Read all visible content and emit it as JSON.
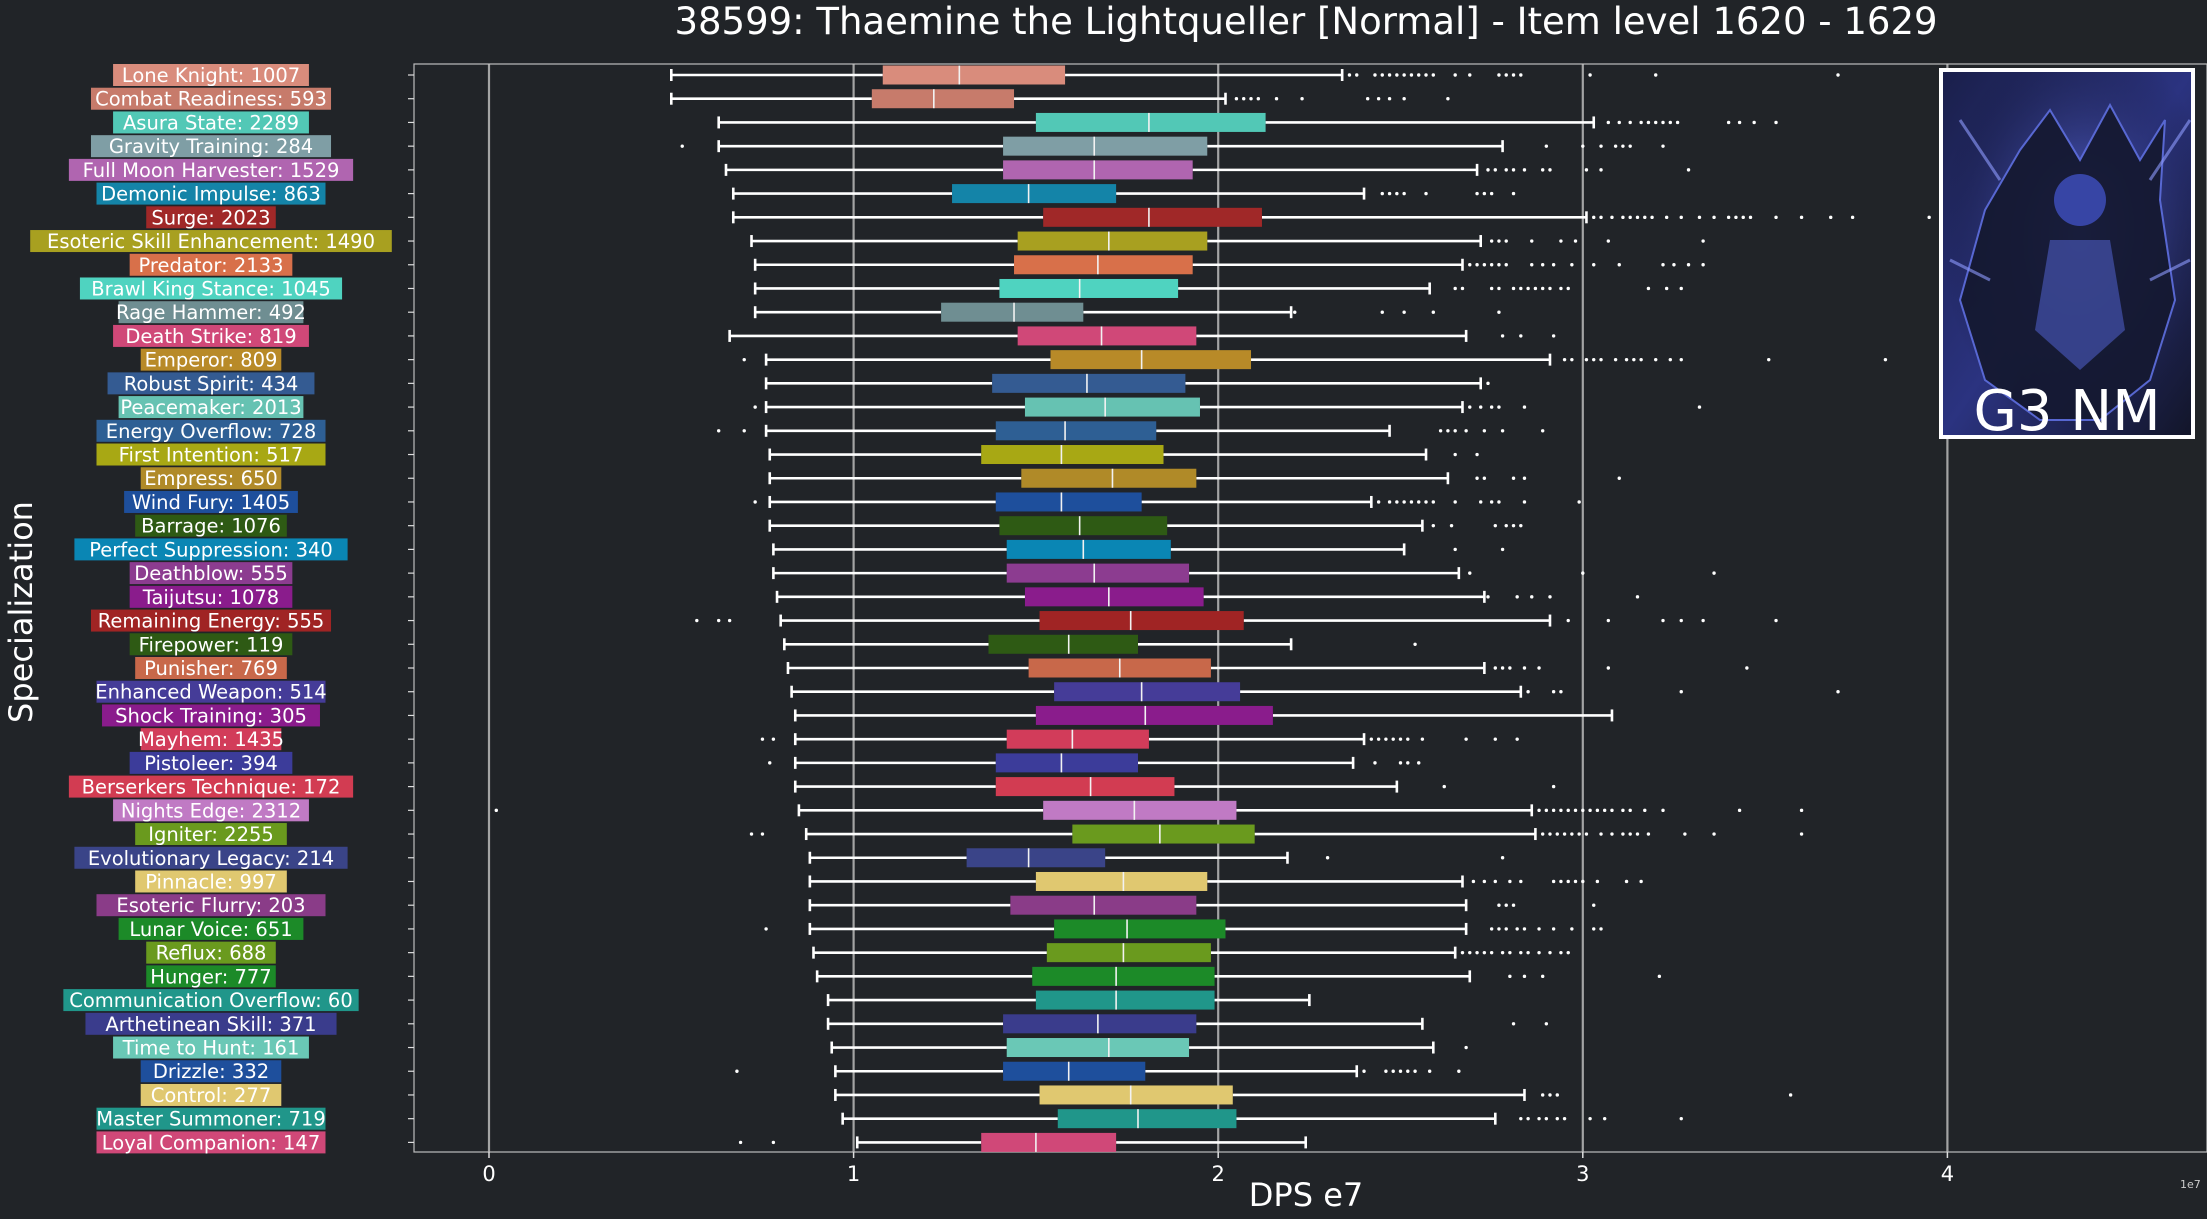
{
  "chart_data": {
    "type": "box",
    "title": "38599: Thaemine the Lightqueller [Normal] - Item level 1620 - 1629",
    "xlabel": "DPS e7",
    "ylabel": "Specialization",
    "x_scale_note": "1e7",
    "xlim": [
      -0.21,
      4.7
    ],
    "xticks": [
      0,
      1,
      2,
      3,
      4
    ],
    "grid": "vertical",
    "badge_text": "G3 NM",
    "categories": [
      {
        "label": "Lone Knight: 1007",
        "color": "#d98c7c",
        "whislo": 0.5,
        "q1": 1.08,
        "med": 1.29,
        "q3": 1.58,
        "whishi": 2.34,
        "fliers": [
          2.36,
          2.38,
          2.43,
          2.45,
          2.47,
          2.49,
          2.51,
          2.53,
          2.55,
          2.57,
          2.59,
          2.65,
          2.69,
          2.77,
          2.79,
          2.81,
          2.83,
          3.02,
          3.2,
          3.7
        ]
      },
      {
        "label": "Combat Readiness: 593",
        "color": "#c77b6b",
        "whislo": 0.5,
        "q1": 1.05,
        "med": 1.22,
        "q3": 1.44,
        "whishi": 2.02,
        "fliers": [
          2.05,
          2.07,
          2.09,
          2.11,
          2.16,
          2.23,
          2.41,
          2.44,
          2.47,
          2.51,
          2.63
        ]
      },
      {
        "label": "Asura State: 2289",
        "color": "#52c8b6",
        "whislo": 0.63,
        "q1": 1.5,
        "med": 1.81,
        "q3": 2.13,
        "whishi": 3.03,
        "fliers": [
          3.07,
          3.1,
          3.13,
          3.16,
          3.18,
          3.2,
          3.22,
          3.24,
          3.26,
          3.4,
          3.43,
          3.47,
          3.53
        ]
      },
      {
        "label": "Gravity Training: 284",
        "color": "#7f9ea5",
        "whislo": 0.63,
        "q1": 1.41,
        "med": 1.66,
        "q3": 1.97,
        "whishi": 2.78,
        "fliers": [
          0.53,
          2.9,
          3.0,
          3.05,
          3.09,
          3.11,
          3.13,
          3.22
        ]
      },
      {
        "label": "Full Moon Harvester: 1529",
        "color": "#b065b0",
        "whislo": 0.65,
        "q1": 1.41,
        "med": 1.66,
        "q3": 1.93,
        "whishi": 2.71,
        "fliers": [
          2.74,
          2.76,
          2.79,
          2.81,
          2.84,
          2.89,
          2.91,
          3.01,
          3.05,
          3.29
        ]
      },
      {
        "label": "Demonic Impulse: 863",
        "color": "#1484a8",
        "whislo": 0.67,
        "q1": 1.27,
        "med": 1.48,
        "q3": 1.72,
        "whishi": 2.4,
        "fliers": [
          2.45,
          2.47,
          2.49,
          2.51,
          2.57,
          2.71,
          2.73,
          2.75,
          2.81
        ]
      },
      {
        "label": "Surge: 2023",
        "color": "#a02828",
        "whislo": 0.67,
        "q1": 1.52,
        "med": 1.81,
        "q3": 2.12,
        "whishi": 3.01,
        "fliers": [
          3.03,
          3.05,
          3.08,
          3.11,
          3.13,
          3.15,
          3.17,
          3.19,
          3.23,
          3.27,
          3.32,
          3.36,
          3.4,
          3.42,
          3.44,
          3.46,
          3.53,
          3.6,
          3.68,
          3.74,
          3.95
        ]
      },
      {
        "label": "Esoteric Skill Enhancement: 1490",
        "color": "#a8a020",
        "whislo": 0.72,
        "q1": 1.45,
        "med": 1.7,
        "q3": 1.97,
        "whishi": 2.72,
        "fliers": [
          2.75,
          2.77,
          2.79,
          2.86,
          2.94,
          2.98,
          3.07,
          3.33
        ]
      },
      {
        "label": "Predator: 2133",
        "color": "#d8704a",
        "whislo": 0.73,
        "q1": 1.44,
        "med": 1.67,
        "q3": 1.93,
        "whishi": 2.67,
        "fliers": [
          2.69,
          2.71,
          2.73,
          2.75,
          2.77,
          2.79,
          2.86,
          2.89,
          2.92,
          2.97,
          3.03,
          3.1,
          3.22,
          3.25,
          3.29,
          3.33
        ]
      },
      {
        "label": "Brawl King Stance: 1045",
        "color": "#4fd3c0",
        "whislo": 0.73,
        "q1": 1.4,
        "med": 1.62,
        "q3": 1.89,
        "whishi": 2.58,
        "fliers": [
          2.65,
          2.67,
          2.75,
          2.77,
          2.81,
          2.83,
          2.85,
          2.87,
          2.89,
          2.91,
          2.94,
          2.96,
          3.18,
          3.23,
          3.27
        ]
      },
      {
        "label": "Rage Hammer: 492",
        "color": "#6f8e92",
        "whislo": 0.73,
        "q1": 1.24,
        "med": 1.44,
        "q3": 1.63,
        "whishi": 2.2,
        "fliers": [
          2.21,
          2.45,
          2.51,
          2.59,
          2.77
        ]
      },
      {
        "label": "Death Strike: 819",
        "color": "#d04878",
        "whislo": 0.66,
        "q1": 1.45,
        "med": 1.68,
        "q3": 1.94,
        "whishi": 2.68,
        "fliers": [
          2.78,
          2.83,
          2.92
        ]
      },
      {
        "label": "Emperor: 809",
        "color": "#b88a28",
        "whislo": 0.76,
        "q1": 1.54,
        "med": 1.79,
        "q3": 2.09,
        "whishi": 2.91,
        "fliers": [
          0.7,
          2.95,
          2.97,
          3.01,
          3.03,
          3.05,
          3.09,
          3.12,
          3.14,
          3.16,
          3.2,
          3.24,
          3.27,
          3.51,
          3.83
        ]
      },
      {
        "label": "Robust Spirit: 434",
        "color": "#345b92",
        "whislo": 0.76,
        "q1": 1.38,
        "med": 1.64,
        "q3": 1.91,
        "whishi": 2.72,
        "fliers": [
          2.74
        ]
      },
      {
        "label": "Peacemaker: 2013",
        "color": "#66c2b2",
        "whislo": 0.76,
        "q1": 1.47,
        "med": 1.69,
        "q3": 1.95,
        "whishi": 2.67,
        "fliers": [
          0.73,
          2.69,
          2.72,
          2.75,
          2.77,
          2.84,
          3.32
        ]
      },
      {
        "label": "Energy Overflow: 728",
        "color": "#2e5f94",
        "whislo": 0.76,
        "q1": 1.39,
        "med": 1.58,
        "q3": 1.83,
        "whishi": 2.47,
        "fliers": [
          0.63,
          0.7,
          2.61,
          2.63,
          2.65,
          2.68,
          2.73,
          2.78,
          2.89
        ]
      },
      {
        "label": "First Intention: 517",
        "color": "#a8a814",
        "whislo": 0.77,
        "q1": 1.35,
        "med": 1.57,
        "q3": 1.85,
        "whishi": 2.57,
        "fliers": [
          2.65,
          2.71
        ]
      },
      {
        "label": "Empress: 650",
        "color": "#b08a28",
        "whislo": 0.77,
        "q1": 1.46,
        "med": 1.71,
        "q3": 1.94,
        "whishi": 2.63,
        "fliers": [
          2.71,
          2.73,
          2.81,
          2.84,
          3.1
        ]
      },
      {
        "label": "Wind Fury: 1405",
        "color": "#1e4f9c",
        "whislo": 0.77,
        "q1": 1.39,
        "med": 1.57,
        "q3": 1.79,
        "whishi": 2.42,
        "fliers": [
          0.73,
          2.44,
          2.47,
          2.49,
          2.51,
          2.53,
          2.55,
          2.57,
          2.59,
          2.65,
          2.72,
          2.75,
          2.77,
          2.84,
          2.99
        ]
      },
      {
        "label": "Barrage: 1076",
        "color": "#2e5a14",
        "whislo": 0.77,
        "q1": 1.4,
        "med": 1.62,
        "q3": 1.86,
        "whishi": 2.56,
        "fliers": [
          2.59,
          2.64,
          2.76,
          2.79,
          2.81,
          2.83
        ]
      },
      {
        "label": "Perfect Suppression: 340",
        "color": "#0a86b4",
        "whislo": 0.78,
        "q1": 1.42,
        "med": 1.63,
        "q3": 1.87,
        "whishi": 2.51,
        "fliers": [
          2.65,
          2.78
        ]
      },
      {
        "label": "Deathblow: 555",
        "color": "#8c3c90",
        "whislo": 0.78,
        "q1": 1.42,
        "med": 1.66,
        "q3": 1.92,
        "whishi": 2.66,
        "fliers": [
          2.69,
          3.0,
          3.36
        ]
      },
      {
        "label": "Taijutsu: 1078",
        "color": "#8a1c8c",
        "whislo": 0.79,
        "q1": 1.47,
        "med": 1.7,
        "q3": 1.96,
        "whishi": 2.73,
        "fliers": [
          2.74,
          2.82,
          2.86,
          2.91,
          3.15
        ]
      },
      {
        "label": "Remaining Energy: 555",
        "color": "#a02424",
        "whislo": 0.8,
        "q1": 1.51,
        "med": 1.76,
        "q3": 2.07,
        "whishi": 2.91,
        "fliers": [
          0.57,
          0.63,
          0.66,
          2.96,
          3.07,
          3.22,
          3.27,
          3.33,
          3.53
        ]
      },
      {
        "label": "Firepower: 119",
        "color": "#2e5a14",
        "whislo": 0.81,
        "q1": 1.37,
        "med": 1.59,
        "q3": 1.78,
        "whishi": 2.2,
        "fliers": [
          2.54
        ]
      },
      {
        "label": "Punisher: 769",
        "color": "#c8684a",
        "whislo": 0.82,
        "q1": 1.48,
        "med": 1.73,
        "q3": 1.98,
        "whishi": 2.73,
        "fliers": [
          2.76,
          2.78,
          2.8,
          2.84,
          2.88,
          3.07,
          3.45
        ]
      },
      {
        "label": "Enhanced Weapon: 514",
        "color": "#453c98",
        "whislo": 0.83,
        "q1": 1.55,
        "med": 1.79,
        "q3": 2.06,
        "whishi": 2.83,
        "fliers": [
          2.85,
          2.92,
          2.94,
          3.27,
          3.7
        ]
      },
      {
        "label": "Shock Training: 305",
        "color": "#8a1c8c",
        "whislo": 0.84,
        "q1": 1.5,
        "med": 1.8,
        "q3": 2.15,
        "whishi": 3.08,
        "fliers": []
      },
      {
        "label": "Mayhem: 1435",
        "color": "#d23c5a",
        "whislo": 0.84,
        "q1": 1.42,
        "med": 1.6,
        "q3": 1.81,
        "whishi": 2.4,
        "fliers": [
          0.75,
          0.78,
          2.42,
          2.44,
          2.46,
          2.48,
          2.5,
          2.52,
          2.56,
          2.68,
          2.76,
          2.82
        ]
      },
      {
        "label": "Pistoleer: 394",
        "color": "#3c3c9a",
        "whislo": 0.84,
        "q1": 1.39,
        "med": 1.57,
        "q3": 1.78,
        "whishi": 2.37,
        "fliers": [
          0.77,
          2.43,
          2.5,
          2.52,
          2.55
        ]
      },
      {
        "label": "Berserkers Technique: 172",
        "color": "#d23c52",
        "whislo": 0.84,
        "q1": 1.39,
        "med": 1.65,
        "q3": 1.88,
        "whishi": 2.49,
        "fliers": [
          2.62,
          2.92
        ]
      },
      {
        "label": "Nights Edge: 2312",
        "color": "#c07ac4",
        "whislo": 0.85,
        "q1": 1.52,
        "med": 1.77,
        "q3": 2.05,
        "whishi": 2.86,
        "fliers": [
          0.02,
          2.88,
          2.9,
          2.92,
          2.94,
          2.96,
          2.98,
          3.0,
          3.02,
          3.04,
          3.06,
          3.08,
          3.11,
          3.13,
          3.17,
          3.22,
          3.43,
          3.6
        ]
      },
      {
        "label": "Igniter: 2255",
        "color": "#6a9a1e",
        "whislo": 0.87,
        "q1": 1.6,
        "med": 1.84,
        "q3": 2.1,
        "whishi": 2.87,
        "fliers": [
          0.72,
          0.75,
          2.89,
          2.91,
          2.93,
          2.95,
          2.97,
          2.99,
          3.01,
          3.05,
          3.08,
          3.11,
          3.13,
          3.15,
          3.18,
          3.28,
          3.36,
          3.6
        ]
      },
      {
        "label": "Evolutionary Legacy: 214",
        "color": "#3a4488",
        "whislo": 0.88,
        "q1": 1.31,
        "med": 1.48,
        "q3": 1.69,
        "whishi": 2.19,
        "fliers": [
          2.3,
          2.78
        ]
      },
      {
        "label": "Pinnacle: 997",
        "color": "#e0c870",
        "whislo": 0.88,
        "q1": 1.5,
        "med": 1.74,
        "q3": 1.97,
        "whishi": 2.67,
        "fliers": [
          2.7,
          2.73,
          2.76,
          2.8,
          2.83,
          2.92,
          2.94,
          2.96,
          2.98,
          3.0,
          3.04,
          3.12,
          3.16
        ]
      },
      {
        "label": "Esoteric Flurry: 203",
        "color": "#8a3c88",
        "whislo": 0.88,
        "q1": 1.43,
        "med": 1.66,
        "q3": 1.94,
        "whishi": 2.68,
        "fliers": [
          2.77,
          2.79,
          2.81,
          3.03
        ]
      },
      {
        "label": "Lunar Voice: 651",
        "color": "#1c8a28",
        "whislo": 0.88,
        "q1": 1.55,
        "med": 1.75,
        "q3": 2.02,
        "whishi": 2.68,
        "fliers": [
          0.76,
          2.75,
          2.77,
          2.79,
          2.82,
          2.84,
          2.88,
          2.92,
          2.97,
          3.03,
          3.05
        ]
      },
      {
        "label": "Reflux: 688",
        "color": "#6a9a1e",
        "whislo": 0.89,
        "q1": 1.53,
        "med": 1.74,
        "q3": 1.98,
        "whishi": 2.65,
        "fliers": [
          2.67,
          2.69,
          2.71,
          2.73,
          2.75,
          2.78,
          2.8,
          2.83,
          2.85,
          2.88,
          2.91,
          2.94,
          2.96
        ]
      },
      {
        "label": "Hunger: 777",
        "color": "#1c8a28",
        "whislo": 0.9,
        "q1": 1.49,
        "med": 1.72,
        "q3": 1.99,
        "whishi": 2.69,
        "fliers": [
          2.8,
          2.84,
          2.89,
          3.21
        ]
      },
      {
        "label": "Communication Overflow: 60",
        "color": "#20968a",
        "whislo": 0.93,
        "q1": 1.5,
        "med": 1.72,
        "q3": 1.99,
        "whishi": 2.25,
        "fliers": []
      },
      {
        "label": "Arthetinean Skill: 371",
        "color": "#3a3c8c",
        "whislo": 0.93,
        "q1": 1.41,
        "med": 1.67,
        "q3": 1.94,
        "whishi": 2.56,
        "fliers": [
          2.81,
          2.9
        ]
      },
      {
        "label": "Time to Hunt: 161",
        "color": "#6ac8b6",
        "whislo": 0.94,
        "q1": 1.42,
        "med": 1.7,
        "q3": 1.92,
        "whishi": 2.59,
        "fliers": [
          2.68
        ]
      },
      {
        "label": "Drizzle: 332",
        "color": "#1e4f9c",
        "whislo": 0.95,
        "q1": 1.41,
        "med": 1.59,
        "q3": 1.8,
        "whishi": 2.38,
        "fliers": [
          0.68,
          2.4,
          2.46,
          2.48,
          2.5,
          2.52,
          2.54,
          2.58,
          2.66
        ]
      },
      {
        "label": "Control: 277",
        "color": "#e0c870",
        "whislo": 0.95,
        "q1": 1.51,
        "med": 1.76,
        "q3": 2.04,
        "whishi": 2.84,
        "fliers": [
          2.89,
          2.91,
          2.93,
          3.57
        ]
      },
      {
        "label": "Master Summoner: 719",
        "color": "#20968a",
        "whislo": 0.97,
        "q1": 1.56,
        "med": 1.78,
        "q3": 2.05,
        "whishi": 2.76,
        "fliers": [
          2.83,
          2.85,
          2.88,
          2.9,
          2.93,
          2.95,
          3.02,
          3.06,
          3.27
        ]
      },
      {
        "label": "Loyal Companion: 147",
        "color": "#d04878",
        "whislo": 1.01,
        "q1": 1.35,
        "med": 1.5,
        "q3": 1.72,
        "whishi": 2.24,
        "fliers": [
          0.69,
          0.78
        ]
      }
    ]
  }
}
